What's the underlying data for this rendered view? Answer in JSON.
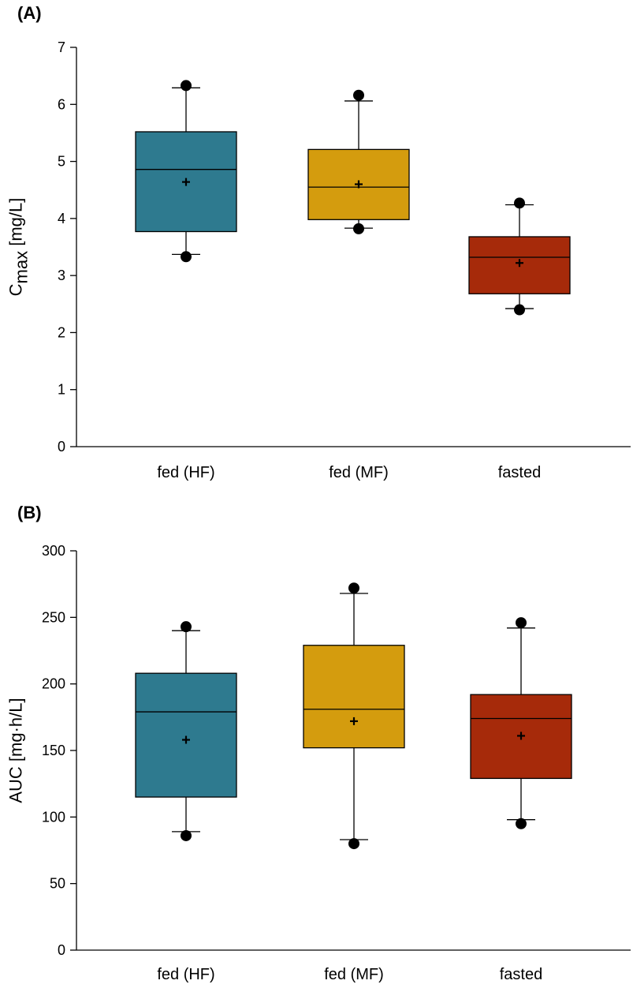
{
  "chart_data": [
    {
      "type": "box",
      "panel_label": "(A)",
      "ylabel_main": "C",
      "ylabel_sub": "max",
      "ylabel_unit": " [mg/L]",
      "ylim": [
        0,
        7
      ],
      "yticks": [
        0,
        1,
        2,
        3,
        4,
        5,
        6,
        7
      ],
      "categories": [
        "fed (HF)",
        "fed (MF)",
        "fasted"
      ],
      "colors": [
        "#2e7a8f",
        "#d49c0e",
        "#a62a0a"
      ],
      "boxes": [
        {
          "q1": 3.77,
          "median": 4.86,
          "q3": 5.52,
          "whisker_low": 3.37,
          "whisker_high": 6.29,
          "mean": 4.64,
          "outliers": [
            6.33,
            3.33
          ]
        },
        {
          "q1": 3.98,
          "median": 4.55,
          "q3": 5.21,
          "whisker_low": 3.83,
          "whisker_high": 6.06,
          "mean": 4.6,
          "outliers": [
            6.16,
            3.82
          ]
        },
        {
          "q1": 2.68,
          "median": 3.32,
          "q3": 3.68,
          "whisker_low": 2.42,
          "whisker_high": 4.24,
          "mean": 3.22,
          "outliers": [
            4.27,
            2.4
          ]
        }
      ]
    },
    {
      "type": "box",
      "panel_label": "(B)",
      "ylabel_main": "AUC [mg·h/L]",
      "ylabel_sub": "",
      "ylabel_unit": "",
      "ylim": [
        0,
        300
      ],
      "yticks": [
        0,
        50,
        100,
        150,
        200,
        250,
        300
      ],
      "categories": [
        "fed (HF)",
        "fed (MF)",
        "fasted"
      ],
      "colors": [
        "#2e7a8f",
        "#d49c0e",
        "#a62a0a"
      ],
      "boxes": [
        {
          "q1": 115,
          "median": 179,
          "q3": 208,
          "whisker_low": 89,
          "whisker_high": 240,
          "mean": 158,
          "outliers": [
            243,
            86
          ]
        },
        {
          "q1": 152,
          "median": 181,
          "q3": 229,
          "whisker_low": 83,
          "whisker_high": 268,
          "mean": 172,
          "outliers": [
            272,
            80
          ]
        },
        {
          "q1": 129,
          "median": 174,
          "q3": 192,
          "whisker_low": 98,
          "whisker_high": 242,
          "mean": 161,
          "outliers": [
            246,
            95
          ]
        }
      ]
    }
  ]
}
